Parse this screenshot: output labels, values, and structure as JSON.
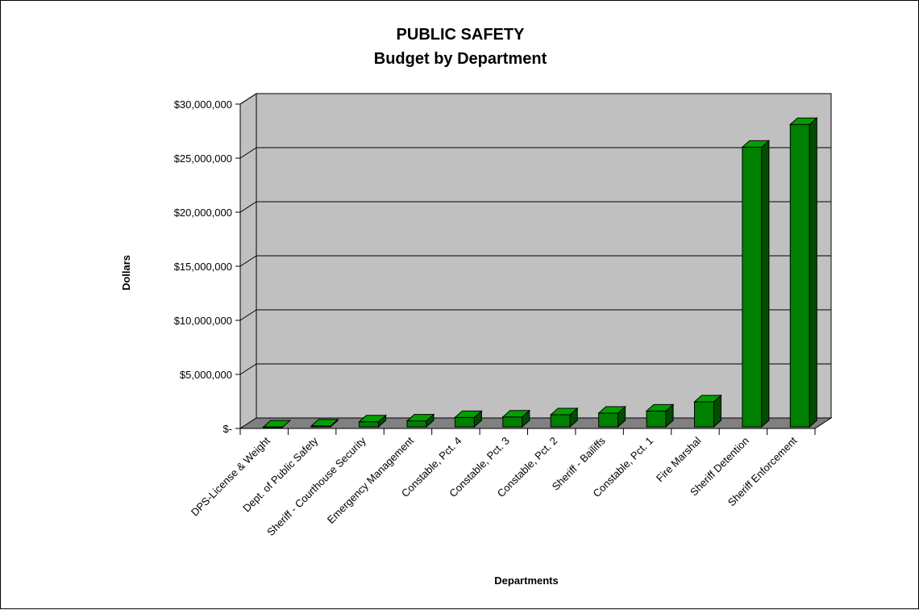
{
  "chart_data": {
    "type": "bar",
    "title": "PUBLIC SAFETY",
    "subtitle": "Budget by Department",
    "xlabel": "Departments",
    "ylabel": "Dollars",
    "ylim": [
      0,
      30000000
    ],
    "yticks": [
      0,
      5000000,
      10000000,
      15000000,
      20000000,
      25000000,
      30000000
    ],
    "ytick_labels": [
      "$-",
      "$5,000,000",
      "$10,000,000",
      "$15,000,000",
      "$20,000,000",
      "$25,000,000",
      "$30,000,000"
    ],
    "categories": [
      "DPS-License & Weight",
      "Dept. of Public Safety",
      "Sheriff - Courthouse Security",
      "Emergency Management",
      "Constable, Pct. 4",
      "Constable, Pct. 3",
      "Constable, Pct. 2",
      "Sheriff - Bailiffs",
      "Constable, Pct. 1",
      "Fire Marshal",
      "Sheriff Detention",
      "Sheriff Enforcement"
    ],
    "values": [
      20000,
      120000,
      500000,
      580000,
      900000,
      950000,
      1150000,
      1300000,
      1500000,
      2350000,
      25900000,
      28000000
    ],
    "grid": true,
    "legend": "none",
    "colors": {
      "bar_front": "#008000",
      "bar_side": "#004d00",
      "bar_top": "#00a000",
      "back_wall": "#c0c0c0",
      "floor": "#808080",
      "gridline": "#000000"
    }
  }
}
